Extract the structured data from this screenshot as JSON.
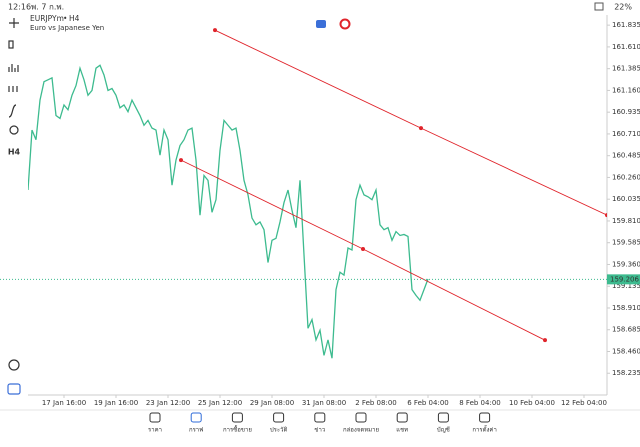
{
  "status_bar": {
    "time": "12:16",
    "date": "พ. 7 ก.พ.",
    "battery": "22%"
  },
  "header": {
    "symbol": "EURJPYm",
    "timeframe": "H4",
    "description": "Euro vs Japanese Yen"
  },
  "chart_data": {
    "type": "line",
    "color": "#3dbb8f",
    "values": [
      160.13,
      160.75,
      160.65,
      161.06,
      161.25,
      161.27,
      161.29,
      160.9,
      160.87,
      161.01,
      160.96,
      161.11,
      161.21,
      161.39,
      161.27,
      161.11,
      161.16,
      161.39,
      161.42,
      161.32,
      161.16,
      161.18,
      161.11,
      160.98,
      161.01,
      160.94,
      161.06,
      160.98,
      160.9,
      160.8,
      160.85,
      160.77,
      160.75,
      160.49,
      160.75,
      160.65,
      160.18,
      160.44,
      160.59,
      160.65,
      160.75,
      160.77,
      160.44,
      159.87,
      160.28,
      160.23,
      159.9,
      160.03,
      160.54,
      160.85,
      160.8,
      160.75,
      160.77,
      160.54,
      160.23,
      160.08,
      159.84,
      159.77,
      159.8,
      159.72,
      159.38,
      159.61,
      159.63,
      159.8,
      160.0,
      160.13,
      159.92,
      159.74,
      160.23,
      159.46,
      158.7,
      158.79,
      158.58,
      158.68,
      158.42,
      158.58,
      158.39,
      159.1,
      159.28,
      159.25,
      159.53,
      159.51,
      160.03,
      160.18,
      160.08,
      160.06,
      160.03,
      160.13,
      159.77,
      159.72,
      159.74,
      159.61,
      159.7,
      159.66,
      159.67,
      159.65,
      159.1,
      159.04,
      158.99,
      159.1,
      159.21
    ],
    "xlim": [
      0,
      144.75
    ],
    "xticks": [
      {
        "value": 9,
        "label": "17 Jan 16:00"
      },
      {
        "value": 22,
        "label": "19 Jan 16:00"
      },
      {
        "value": 35,
        "label": "23 Jan 12:00"
      },
      {
        "value": 48,
        "label": "25 Jan 12:00"
      },
      {
        "value": 61,
        "label": "29 Jan 08:00"
      },
      {
        "value": 74,
        "label": "31 Jan 08:00"
      },
      {
        "value": 87,
        "label": "2 Feb 08:00"
      },
      {
        "value": 100,
        "label": "6 Feb 04:00"
      },
      {
        "value": 113,
        "label": "8 Feb 04:00"
      },
      {
        "value": 126,
        "label": "10 Feb 04:00"
      },
      {
        "value": 139,
        "label": "12 Feb 04:00"
      }
    ],
    "ylim": [
      158.01,
      161.94
    ],
    "yticks": [
      161.835,
      {
        "value": 161.61,
        "label": "161.610"
      },
      161.385,
      {
        "value": 161.16,
        "label": "161.160"
      },
      160.935,
      {
        "value": 160.71,
        "label": "160.710"
      },
      160.485,
      {
        "value": 160.26,
        "label": "160.260"
      },
      160.035,
      {
        "value": 159.81,
        "label": "159.810"
      },
      159.585,
      {
        "value": 159.36,
        "label": "159.360"
      },
      159.135,
      {
        "value": 158.91,
        "label": "158.910"
      },
      158.685,
      {
        "value": 158.46,
        "label": "158.460"
      },
      158.235
    ],
    "current_price": 159.206,
    "current_price_color": "#3dbb8f",
    "trendlines": [
      {
        "color": "#e0242b",
        "x": [
          46.75,
          98.25,
          144.75
        ],
        "values": [
          161.783,
          160.77,
          159.87
        ]
      },
      {
        "color": "#e0242b",
        "x": [
          38.25,
          83.75,
          129.25
        ],
        "values": [
          160.439,
          159.52,
          158.577
        ]
      }
    ]
  },
  "nav": {
    "active": 1,
    "items": [
      "ราคา",
      "กราฟ",
      "การซื้อขาย",
      "ประวัติ",
      "ข่าว",
      "กล่องจดหมาย",
      "แชท",
      "บัญชี",
      "การตั้งค่า"
    ]
  }
}
